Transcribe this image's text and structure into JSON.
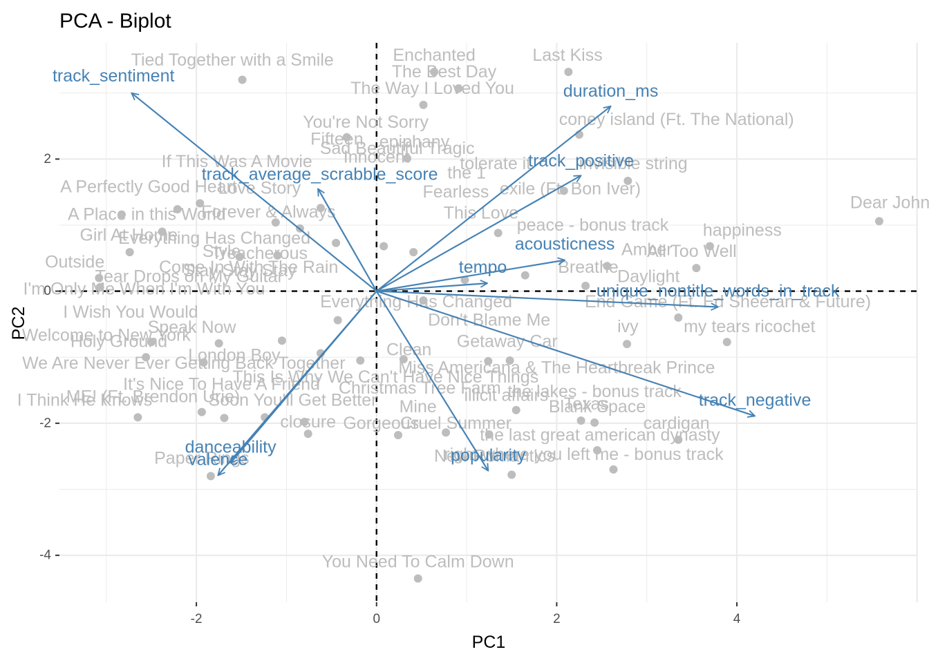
{
  "chart_data": {
    "type": "scatter",
    "title": "PCA - Biplot",
    "xlabel": "PC1",
    "ylabel": "PC2",
    "xlim": [
      -3.52,
      6.01
    ],
    "ylim": [
      -4.71,
      3.76
    ],
    "x_ticks": [
      -2,
      0,
      2,
      4
    ],
    "y_ticks": [
      -4,
      -2,
      0,
      2
    ],
    "grid": true,
    "reference_lines": {
      "x": 0,
      "y": 0,
      "style": "dashed"
    },
    "colors": {
      "points": "#bdbdbd",
      "song_labels": "#bdbdbd",
      "arrows": "#4682b4",
      "variable_labels": "#4682b4",
      "grid": "#ebebeb",
      "reference": "#000000"
    },
    "points": [
      {
        "x": -1.49,
        "y": 3.2
      },
      {
        "x": 0.64,
        "y": 3.32
      },
      {
        "x": 0.91,
        "y": 3.07
      },
      {
        "x": 2.13,
        "y": 3.32
      },
      {
        "x": 0.52,
        "y": 2.82
      },
      {
        "x": 2.25,
        "y": 2.37
      },
      {
        "x": -0.33,
        "y": 2.33
      },
      {
        "x": 0.34,
        "y": 2.01
      },
      {
        "x": 2.08,
        "y": 1.52
      },
      {
        "x": 2.79,
        "y": 1.67
      },
      {
        "x": 5.58,
        "y": 1.06
      },
      {
        "x": 3.7,
        "y": 0.68
      },
      {
        "x": 3.55,
        "y": 0.35
      },
      {
        "x": 2.56,
        "y": 0.38
      },
      {
        "x": -2.74,
        "y": 0.59
      },
      {
        "x": -3.08,
        "y": 0.2
      },
      {
        "x": -3.07,
        "y": 0.06
      },
      {
        "x": -2.83,
        "y": 1.16
      },
      {
        "x": -2.38,
        "y": 0.9
      },
      {
        "x": -2.21,
        "y": 1.24
      },
      {
        "x": -1.96,
        "y": 1.33
      },
      {
        "x": -1.52,
        "y": 0.52
      },
      {
        "x": -1.12,
        "y": 1.04
      },
      {
        "x": -1.1,
        "y": 0.54
      },
      {
        "x": -0.85,
        "y": 0.95
      },
      {
        "x": -0.62,
        "y": 1.26
      },
      {
        "x": -0.45,
        "y": 0.73
      },
      {
        "x": 0.08,
        "y": 0.68
      },
      {
        "x": 0.41,
        "y": 0.59
      },
      {
        "x": 1.35,
        "y": 0.88
      },
      {
        "x": 0.98,
        "y": 0.17
      },
      {
        "x": 1.65,
        "y": 0.24
      },
      {
        "x": 2.32,
        "y": 0.08
      },
      {
        "x": 0.52,
        "y": -0.14
      },
      {
        "x": -0.43,
        "y": -0.44
      },
      {
        "x": -1.05,
        "y": -0.75
      },
      {
        "x": -1.75,
        "y": -0.79
      },
      {
        "x": -2.5,
        "y": -0.77
      },
      {
        "x": -2.56,
        "y": -1.0
      },
      {
        "x": -1.92,
        "y": -1.08
      },
      {
        "x": -0.62,
        "y": -0.94
      },
      {
        "x": -0.18,
        "y": -1.05
      },
      {
        "x": 0.3,
        "y": -1.03
      },
      {
        "x": 1.24,
        "y": -1.06
      },
      {
        "x": 1.48,
        "y": -1.05
      },
      {
        "x": 3.35,
        "y": -0.4
      },
      {
        "x": 3.89,
        "y": -0.77
      },
      {
        "x": 2.78,
        "y": -0.8
      },
      {
        "x": -2.65,
        "y": -1.91
      },
      {
        "x": -1.94,
        "y": -1.83
      },
      {
        "x": -1.69,
        "y": -1.92
      },
      {
        "x": -1.24,
        "y": -1.91
      },
      {
        "x": -0.8,
        "y": -1.98
      },
      {
        "x": -0.76,
        "y": -2.16
      },
      {
        "x": 0.24,
        "y": -2.18
      },
      {
        "x": 0.77,
        "y": -2.14
      },
      {
        "x": 1.25,
        "y": -2.17
      },
      {
        "x": 1.55,
        "y": -1.8
      },
      {
        "x": 2.27,
        "y": -1.96
      },
      {
        "x": 2.42,
        "y": -1.99
      },
      {
        "x": 2.45,
        "y": -2.41
      },
      {
        "x": 3.35,
        "y": -2.25
      },
      {
        "x": 2.63,
        "y": -2.7
      },
      {
        "x": 1.5,
        "y": -2.78
      },
      {
        "x": -1.84,
        "y": -2.8
      },
      {
        "x": 0.46,
        "y": -4.35
      }
    ],
    "song_labels": [
      {
        "text": "Tied Together with a Smile",
        "x": -1.6,
        "y": 3.5
      },
      {
        "text": "Enchanted",
        "x": 0.64,
        "y": 3.57
      },
      {
        "text": "Last Kiss",
        "x": 2.12,
        "y": 3.57
      },
      {
        "text": "The Best Day",
        "x": 0.75,
        "y": 3.32
      },
      {
        "text": "The Way I Loved You",
        "x": 0.62,
        "y": 3.07
      },
      {
        "text": "You're Not Sorry",
        "x": -0.12,
        "y": 2.56
      },
      {
        "text": "coney island (Ft. The National)",
        "x": 3.33,
        "y": 2.6
      },
      {
        "text": "Fifteen",
        "x": -0.44,
        "y": 2.3
      },
      {
        "text": "epiphany",
        "x": 0.42,
        "y": 2.26
      },
      {
        "text": "Sad Beautiful Tragic",
        "x": 0.23,
        "y": 2.16
      },
      {
        "text": "Innocent",
        "x": 0.0,
        "y": 2.03
      },
      {
        "text": "If This Was A Movie",
        "x": -1.55,
        "y": 1.96
      },
      {
        "text": "tolerate it",
        "x": 1.32,
        "y": 1.93
      },
      {
        "text": "invisible string",
        "x": 2.85,
        "y": 1.93
      },
      {
        "text": "A Perfectly Good Heart",
        "x": -2.53,
        "y": 1.58
      },
      {
        "text": "Love Story",
        "x": -1.3,
        "y": 1.56
      },
      {
        "text": "exile (Ft. Bon Iver)",
        "x": 2.15,
        "y": 1.55
      },
      {
        "text": "the 1",
        "x": 1.0,
        "y": 1.79
      },
      {
        "text": "Fearless",
        "x": 0.88,
        "y": 1.5
      },
      {
        "text": "happiness",
        "x": 4.06,
        "y": 0.92
      },
      {
        "text": "Dear John",
        "x": 5.7,
        "y": 1.34
      },
      {
        "text": "A Place in this World",
        "x": -2.55,
        "y": 1.16
      },
      {
        "text": "Girl At Home",
        "x": -2.75,
        "y": 0.85
      },
      {
        "text": "Everything Has Changed",
        "x": -1.8,
        "y": 0.8
      },
      {
        "text": "Forever & Always",
        "x": -1.2,
        "y": 1.2
      },
      {
        "text": "This Love",
        "x": 1.16,
        "y": 1.18
      },
      {
        "text": "peace - bonus track",
        "x": 2.4,
        "y": 1.0
      },
      {
        "text": "Treacherous",
        "x": -1.3,
        "y": 0.57
      },
      {
        "text": "Style",
        "x": -1.72,
        "y": 0.6
      },
      {
        "text": "All Too Well",
        "x": 3.5,
        "y": 0.6
      },
      {
        "text": "Amber",
        "x": 3.0,
        "y": 0.63
      },
      {
        "text": "Come In With The Rain",
        "x": -1.42,
        "y": 0.36
      },
      {
        "text": "Breathe",
        "x": 2.35,
        "y": 0.36
      },
      {
        "text": "Daylight",
        "x": 3.02,
        "y": 0.22
      },
      {
        "text": "Outside",
        "x": -3.35,
        "y": 0.44
      },
      {
        "text": "Stay Stay Stay",
        "x": -1.52,
        "y": 0.31
      },
      {
        "text": "Tear Drops on My Guitar",
        "x": -2.08,
        "y": 0.22
      },
      {
        "text": "I'm Only Me When I'm With You",
        "x": -2.58,
        "y": 0.03
      },
      {
        "text": "Don't Blame Me",
        "x": 1.25,
        "y": -0.44
      },
      {
        "text": "ivy",
        "x": 2.79,
        "y": -0.54
      },
      {
        "text": "my tears ricochet",
        "x": 4.14,
        "y": -0.54
      },
      {
        "text": "End Game (Ft. Ed Sheeran & Future)",
        "x": 3.9,
        "y": -0.16
      },
      {
        "text": "Everything Has Changed",
        "x": 0.44,
        "y": -0.16
      },
      {
        "text": "I Wish You Would",
        "x": -2.73,
        "y": -0.32
      },
      {
        "text": "Welcome to New York",
        "x": -3.0,
        "y": -0.67
      },
      {
        "text": "Holy Ground",
        "x": -2.86,
        "y": -0.76
      },
      {
        "text": "Speak Now",
        "x": -2.05,
        "y": -0.55
      },
      {
        "text": "London Boy",
        "x": -1.58,
        "y": -0.97
      },
      {
        "text": "Clean",
        "x": 0.36,
        "y": -0.89
      },
      {
        "text": "Getaway Car",
        "x": 1.45,
        "y": -0.76
      },
      {
        "text": "We Are Never Ever Getting Back Together",
        "x": -2.14,
        "y": -1.09
      },
      {
        "text": "Miss Americana & The Heartbreak Prince",
        "x": 2.0,
        "y": -1.16
      },
      {
        "text": "This Is Why We Can't Have Nice Things",
        "x": 0.1,
        "y": -1.3
      },
      {
        "text": "It's Nice To Have A Friend",
        "x": -1.72,
        "y": -1.41
      },
      {
        "text": "Christmas Tree Farm",
        "x": 0.48,
        "y": -1.47
      },
      {
        "text": "illicit affairs",
        "x": 1.44,
        "y": -1.58
      },
      {
        "text": "the lakes - bonus track",
        "x": 2.42,
        "y": -1.52
      },
      {
        "text": "ME! (Ft. Brendon Urie)",
        "x": -2.48,
        "y": -1.6
      },
      {
        "text": "I Think He Knows",
        "x": -3.24,
        "y": -1.65
      },
      {
        "text": "Soon You'll Get Better",
        "x": -0.93,
        "y": -1.65
      },
      {
        "text": "Mine",
        "x": 0.46,
        "y": -1.75
      },
      {
        "text": "Blank Space",
        "x": 2.45,
        "y": -1.75
      },
      {
        "text": "Texas",
        "x": 2.33,
        "y": -1.71
      },
      {
        "text": "closure",
        "x": -0.76,
        "y": -1.98
      },
      {
        "text": "Gorgeous",
        "x": 0.05,
        "y": -2.0
      },
      {
        "text": "Cruel Summer",
        "x": 0.88,
        "y": -2.0
      },
      {
        "text": "cardigan",
        "x": 3.33,
        "y": -2.0
      },
      {
        "text": "the last great american dynasty",
        "x": 2.48,
        "y": -2.18
      },
      {
        "text": "right where you left me - bonus track",
        "x": 2.3,
        "y": -2.47
      },
      {
        "text": "New Romantics",
        "x": 1.31,
        "y": -2.5
      },
      {
        "text": "Paper Rings",
        "x": -1.94,
        "y": -2.53
      },
      {
        "text": "You Need To Calm Down",
        "x": 0.46,
        "y": -4.1
      }
    ],
    "variables": [
      {
        "name": "track_sentiment",
        "x": -2.72,
        "y": 3.0,
        "label_x": -2.92,
        "label_y": 3.26
      },
      {
        "name": "duration_ms",
        "x": 2.6,
        "y": 2.8,
        "label_x": 2.6,
        "label_y": 3.03
      },
      {
        "name": "track_average_scrabble_score",
        "x": -0.65,
        "y": 1.55,
        "label_x": -0.63,
        "label_y": 1.77
      },
      {
        "name": "track_positive",
        "x": 2.27,
        "y": 1.75,
        "label_x": 2.27,
        "label_y": 1.97
      },
      {
        "name": "acousticness",
        "x": 2.09,
        "y": 0.47,
        "label_x": 2.09,
        "label_y": 0.71
      },
      {
        "name": "tempo",
        "x": 1.23,
        "y": 0.12,
        "label_x": 1.18,
        "label_y": 0.36
      },
      {
        "name": "unique_nontitle_words_in_track",
        "x": 3.79,
        "y": -0.24,
        "label_x": 3.79,
        "label_y": 0.0
      },
      {
        "name": "track_negative",
        "x": 4.2,
        "y": -1.89,
        "label_x": 4.2,
        "label_y": -1.65
      },
      {
        "name": "popularity",
        "x": 1.24,
        "y": -2.72,
        "label_x": 1.24,
        "label_y": -2.49
      },
      {
        "name": "danceability",
        "x": -1.62,
        "y": -2.6,
        "label_x": -1.62,
        "label_y": -2.36
      },
      {
        "name": "valence",
        "x": -1.76,
        "y": -2.79,
        "label_x": -1.76,
        "label_y": -2.55
      }
    ]
  }
}
